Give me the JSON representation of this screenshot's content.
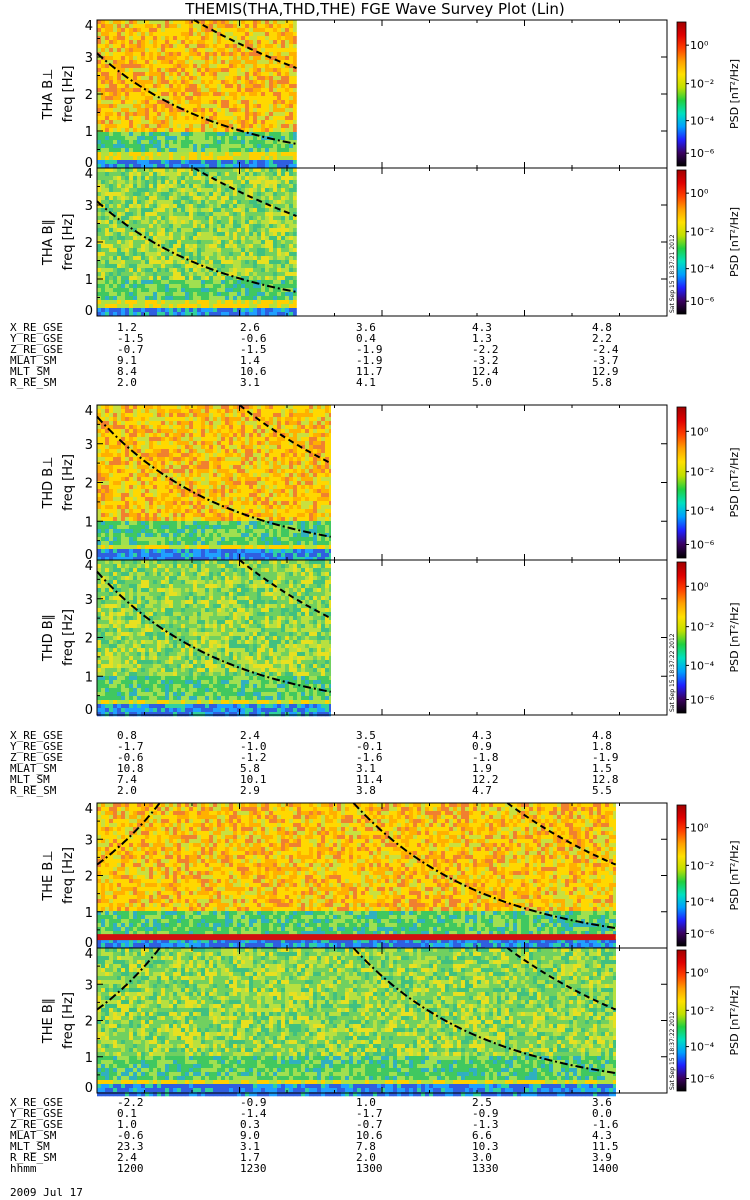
{
  "title": "THEMIS(THA,THD,THE) FGE Wave Survey Plot (Lin)",
  "colors": {
    "colorbar": [
      "#000000",
      "#3a0060",
      "#2020ff",
      "#00a0ff",
      "#00e0c0",
      "#20d040",
      "#c0e000",
      "#ffe000",
      "#ffa000",
      "#ff4000",
      "#e00000",
      "#a00000"
    ],
    "spec_low": "#3050e0",
    "spec_mid": "#30c060",
    "spec_high": "#ffc000",
    "spec_top": "#ff7000",
    "curve": "#000000"
  },
  "chart_data": [
    {
      "type": "heatmap",
      "probe": "THA",
      "component": "B⊥",
      "ylabel": "THA B⊥",
      "yunit": "freq [Hz]",
      "ylim": [
        0,
        4
      ],
      "yticks": [
        "0",
        "1",
        "2",
        "3",
        "4"
      ],
      "data_end_fraction": 0.35,
      "intensity": "high",
      "curves": [
        {
          "style": "dash-dot",
          "x": [
            0,
            0.35
          ],
          "y": [
            3.1,
            0.65
          ]
        },
        {
          "style": "dash",
          "x": [
            0.17,
            0.35
          ],
          "y": [
            4.0,
            2.7
          ]
        }
      ],
      "colorbar": {
        "label": "PSD [nT²/Hz]",
        "ticks": [
          "10⁰",
          "10⁻²",
          "10⁻⁴",
          "10⁻⁶"
        ]
      }
    },
    {
      "type": "heatmap",
      "probe": "THA",
      "component": "B∥",
      "ylabel": "THA B∥",
      "yunit": "freq [Hz]",
      "ylim": [
        0,
        4
      ],
      "yticks": [
        "0",
        "1",
        "2",
        "3",
        "4"
      ],
      "data_end_fraction": 0.35,
      "intensity": "mid",
      "curves": [
        {
          "style": "dash-dot",
          "x": [
            0,
            0.35
          ],
          "y": [
            3.1,
            0.65
          ]
        },
        {
          "style": "dash",
          "x": [
            0.17,
            0.35
          ],
          "y": [
            4.0,
            2.7
          ]
        }
      ],
      "colorbar": {
        "label": "PSD [nT²/Hz]",
        "ticks": [
          "10⁰",
          "10⁻²",
          "10⁻⁴",
          "10⁻⁶"
        ],
        "stamp": "Sat Sep 15 18:37:21 2012"
      }
    },
    {
      "type": "heatmap",
      "probe": "THD",
      "component": "B⊥",
      "ylabel": "THD B⊥",
      "yunit": "freq [Hz]",
      "ylim": [
        0,
        4
      ],
      "yticks": [
        "0",
        "1",
        "2",
        "3",
        "4"
      ],
      "data_end_fraction": 0.41,
      "intensity": "high",
      "curves": [
        {
          "style": "dash-dot",
          "x": [
            0,
            0.41
          ],
          "y": [
            3.7,
            0.6
          ]
        },
        {
          "style": "dash",
          "x": [
            0.25,
            0.41
          ],
          "y": [
            4.0,
            2.5
          ]
        }
      ],
      "colorbar": {
        "label": "PSD [nT²/Hz]",
        "ticks": [
          "10⁰",
          "10⁻²",
          "10⁻⁴",
          "10⁻⁶"
        ]
      }
    },
    {
      "type": "heatmap",
      "probe": "THD",
      "component": "B∥",
      "ylabel": "THD B∥",
      "yunit": "freq [Hz]",
      "ylim": [
        0,
        4
      ],
      "yticks": [
        "0",
        "1",
        "2",
        "3",
        "4"
      ],
      "data_end_fraction": 0.41,
      "intensity": "mid",
      "curves": [
        {
          "style": "dash-dot",
          "x": [
            0,
            0.41
          ],
          "y": [
            3.7,
            0.6
          ]
        },
        {
          "style": "dash",
          "x": [
            0.25,
            0.41
          ],
          "y": [
            4.0,
            2.5
          ]
        }
      ],
      "colorbar": {
        "label": "PSD [nT²/Hz]",
        "ticks": [
          "10⁰",
          "10⁻²",
          "10⁻⁴",
          "10⁻⁶"
        ],
        "stamp": "Sat Sep 15 18:37:22 2012"
      }
    },
    {
      "type": "heatmap",
      "probe": "THE",
      "component": "B⊥",
      "ylabel": "THE B⊥",
      "yunit": "freq [Hz]",
      "ylim": [
        0,
        4
      ],
      "yticks": [
        "0",
        "1",
        "2",
        "3",
        "4"
      ],
      "data_end_fraction": 0.91,
      "intensity": "high",
      "curves": [
        {
          "style": "dash-dot",
          "x": [
            0,
            0.11
          ],
          "y": [
            2.3,
            4.0
          ]
        },
        {
          "style": "dash-dot",
          "x": [
            0.45,
            0.91
          ],
          "y": [
            4.0,
            0.55
          ]
        },
        {
          "style": "dash",
          "x": [
            0.72,
            0.91
          ],
          "y": [
            4.0,
            2.3
          ]
        }
      ],
      "colorbar": {
        "label": "PSD [nT²/Hz]",
        "ticks": [
          "10⁰",
          "10⁻²",
          "10⁻⁴",
          "10⁻⁶"
        ]
      }
    },
    {
      "type": "heatmap",
      "probe": "THE",
      "component": "B∥",
      "ylabel": "THE B∥",
      "yunit": "freq [Hz]",
      "ylim": [
        0,
        4
      ],
      "yticks": [
        "0",
        "1",
        "2",
        "3",
        "4"
      ],
      "data_end_fraction": 0.91,
      "intensity": "mid",
      "curves": [
        {
          "style": "dash-dot",
          "x": [
            0,
            0.11
          ],
          "y": [
            2.3,
            4.0
          ]
        },
        {
          "style": "dash-dot",
          "x": [
            0.45,
            0.91
          ],
          "y": [
            4.0,
            0.55
          ]
        },
        {
          "style": "dash",
          "x": [
            0.72,
            0.91
          ],
          "y": [
            4.0,
            2.3
          ]
        }
      ],
      "colorbar": {
        "label": "PSD [nT²/Hz]",
        "ticks": [
          "10⁰",
          "10⁻²",
          "10⁻⁴",
          "10⁻⁶"
        ],
        "stamp": "Sat Sep 15 18:37:22 2012"
      }
    }
  ],
  "ephemeris": [
    {
      "rows": [
        {
          "label": "X_RE_GSE",
          "values": [
            "1.2",
            "2.6",
            "3.6",
            "4.3",
            "4.8"
          ]
        },
        {
          "label": "Y_RE_GSE",
          "values": [
            "-1.5",
            "-0.6",
            "0.4",
            "1.3",
            "2.2"
          ]
        },
        {
          "label": "Z_RE_GSE",
          "values": [
            "-0.7",
            "-1.5",
            "-1.9",
            "-2.2",
            "-2.4"
          ]
        },
        {
          "label": "MLAT_SM",
          "values": [
            "9.1",
            "1.4",
            "-1.9",
            "-3.2",
            "-3.7"
          ]
        },
        {
          "label": "MLT_SM",
          "values": [
            "8.4",
            "10.6",
            "11.7",
            "12.4",
            "12.9"
          ]
        },
        {
          "label": "R_RE_SM",
          "values": [
            "2.0",
            "3.1",
            "4.1",
            "5.0",
            "5.8"
          ]
        }
      ]
    },
    {
      "rows": [
        {
          "label": "X_RE_GSE",
          "values": [
            "0.8",
            "2.4",
            "3.5",
            "4.3",
            "4.8"
          ]
        },
        {
          "label": "Y_RE_GSE",
          "values": [
            "-1.7",
            "-1.0",
            "-0.1",
            "0.9",
            "1.8"
          ]
        },
        {
          "label": "Z_RE_GSE",
          "values": [
            "-0.6",
            "-1.2",
            "-1.6",
            "-1.8",
            "-1.9"
          ]
        },
        {
          "label": "MLAT_SM",
          "values": [
            "10.8",
            "5.8",
            "3.1",
            "1.9",
            "1.5"
          ]
        },
        {
          "label": "MLT_SM",
          "values": [
            "7.4",
            "10.1",
            "11.4",
            "12.2",
            "12.8"
          ]
        },
        {
          "label": "R_RE_SM",
          "values": [
            "2.0",
            "2.9",
            "3.8",
            "4.7",
            "5.5"
          ]
        }
      ]
    },
    {
      "rows": [
        {
          "label": "X_RE_GSE",
          "values": [
            "-2.2",
            "-0.9",
            "1.0",
            "2.5",
            "3.6"
          ]
        },
        {
          "label": "Y_RE_GSE",
          "values": [
            "0.1",
            "-1.4",
            "-1.7",
            "-0.9",
            "0.0"
          ]
        },
        {
          "label": "Z_RE_GSE",
          "values": [
            "1.0",
            "0.3",
            "-0.7",
            "-1.3",
            "-1.6"
          ]
        },
        {
          "label": "MLAT_SM",
          "values": [
            "-0.6",
            "9.0",
            "10.6",
            "6.6",
            "4.3"
          ]
        },
        {
          "label": "MLT_SM",
          "values": [
            "23.3",
            "3.1",
            "7.8",
            "10.3",
            "11.5"
          ]
        },
        {
          "label": "R_RE_SM",
          "values": [
            "2.4",
            "1.7",
            "2.0",
            "3.0",
            "3.9"
          ]
        },
        {
          "label": "hhmm",
          "values": [
            "1200",
            "1230",
            "1300",
            "1330",
            "1400"
          ]
        }
      ]
    }
  ],
  "date": "2009 Jul 17"
}
